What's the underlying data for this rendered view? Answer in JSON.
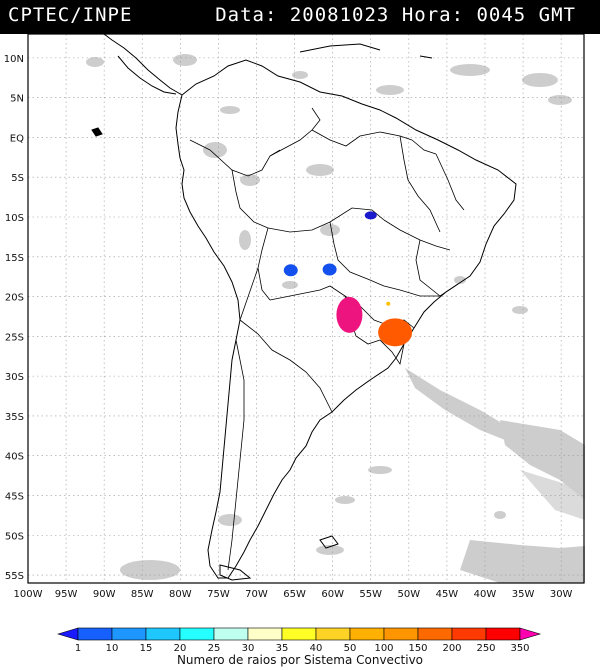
{
  "header": {
    "source": "CPTEC/INPE",
    "data_label": "Data:",
    "date": "20081023",
    "hora_label": "Hora:",
    "time": "0045 GMT"
  },
  "axes": {
    "lat_labels": [
      "10N",
      "5N",
      "EQ",
      "5S",
      "10S",
      "15S",
      "20S",
      "25S",
      "30S",
      "35S",
      "40S",
      "45S",
      "50S",
      "55S"
    ],
    "lon_labels": [
      "100W",
      "95W",
      "90W",
      "85W",
      "80W",
      "75W",
      "70W",
      "65W",
      "60W",
      "55W",
      "50W",
      "45W",
      "40W",
      "35W",
      "30W"
    ]
  },
  "legend": {
    "title": "Numero de raios por Sistema Convectivo",
    "levels": [
      "1",
      "10",
      "15",
      "20",
      "25",
      "30",
      "35",
      "40",
      "50",
      "100",
      "150",
      "200",
      "250",
      "350"
    ],
    "colors": [
      "#1a1aff",
      "#1660ff",
      "#1e96ff",
      "#1ec8ff",
      "#26ffff",
      "#bfffef",
      "#ffffc8",
      "#ffff26",
      "#ffd226",
      "#ffb000",
      "#ff9600",
      "#ff6a00",
      "#ff3a00",
      "#ff0000",
      "#ff00b0"
    ]
  },
  "systems": [
    {
      "lon": -55.0,
      "lat": -9.8,
      "category": "1"
    },
    {
      "lon": -65.5,
      "lat": -16.7,
      "category": "10"
    },
    {
      "lon": -60.4,
      "lat": -16.6,
      "category": "10"
    },
    {
      "lon": -57.8,
      "lat": -22.3,
      "category": "350"
    },
    {
      "lon": -51.8,
      "lat": -24.5,
      "category": "200"
    },
    {
      "lon": -52.7,
      "lat": -20.9,
      "category": "50"
    }
  ]
}
